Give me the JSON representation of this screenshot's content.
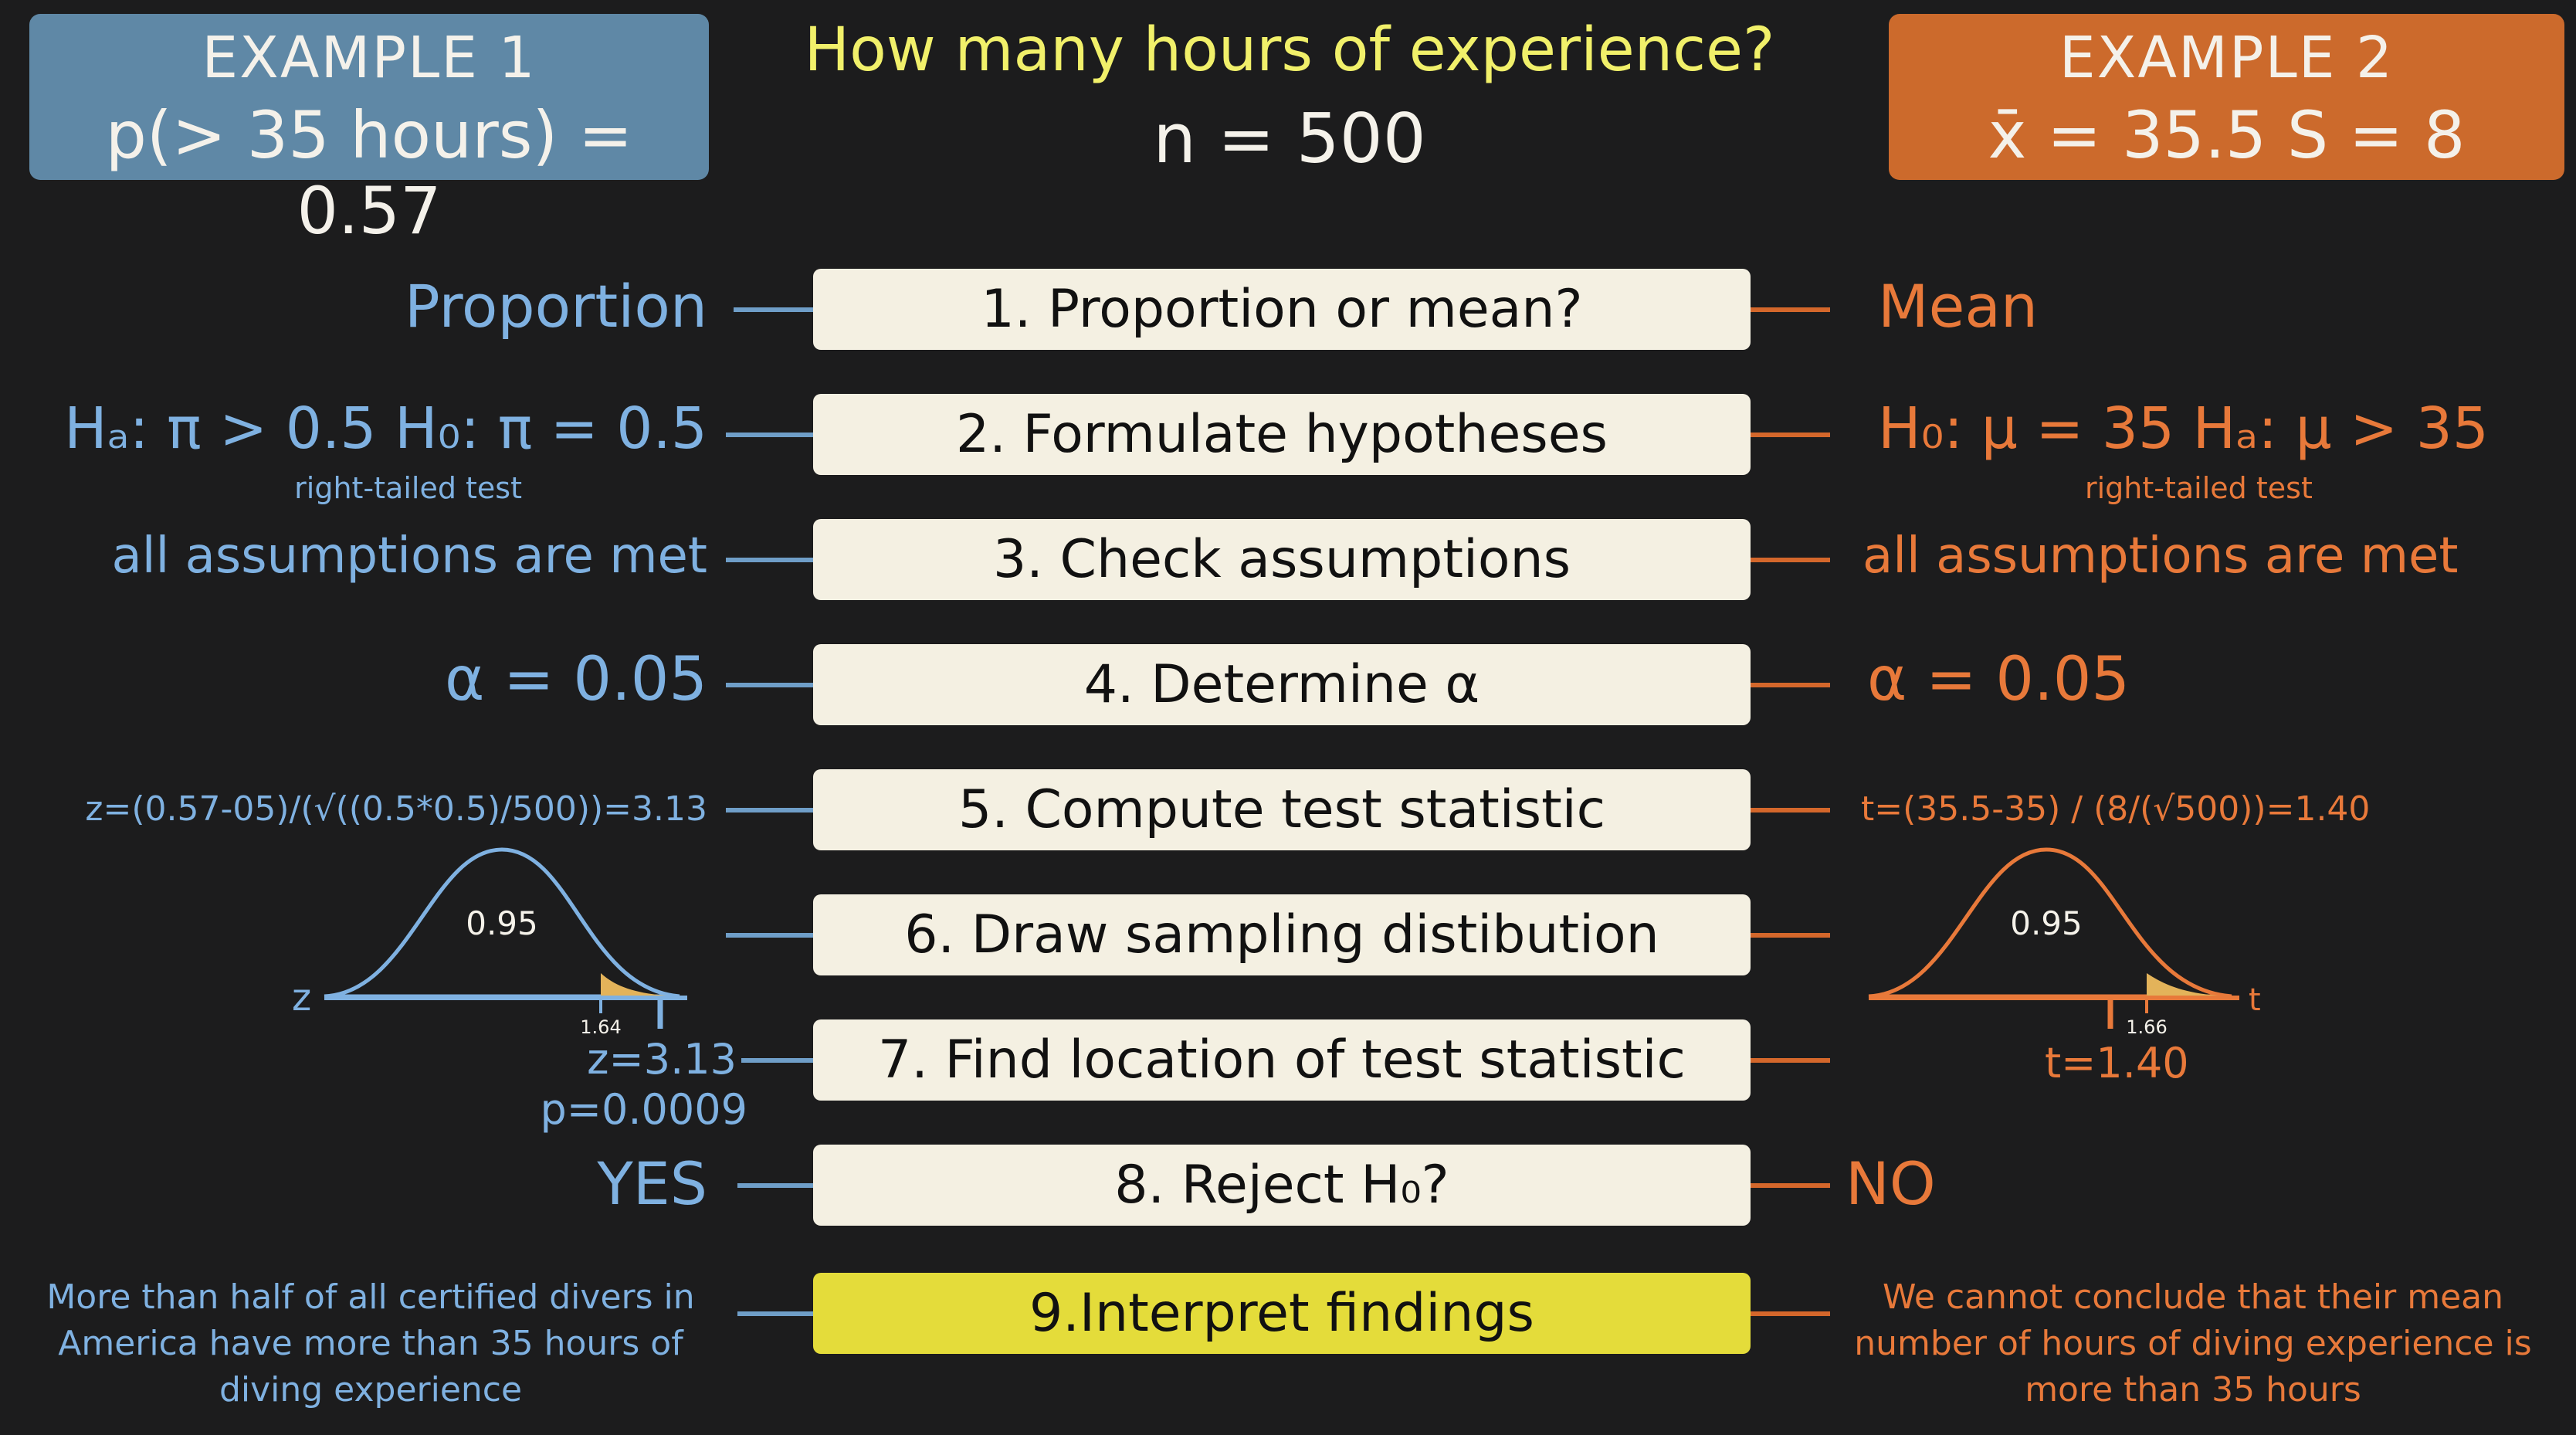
{
  "example1": {
    "title": "EXAMPLE 1",
    "stat": "p(> 35 hours) = 0.57"
  },
  "example2": {
    "title": "EXAMPLE 2",
    "stat": "x̄ = 35.5   S = 8"
  },
  "header": {
    "question": "How many hours of experience?",
    "sample": "n = 500"
  },
  "steps": [
    {
      "label": "1. Proportion or mean?"
    },
    {
      "label": "2. Formulate hypotheses"
    },
    {
      "label": "3. Check assumptions"
    },
    {
      "label": "4. Determine α"
    },
    {
      "label": "5. Compute test statistic"
    },
    {
      "label": "6. Draw sampling distibution"
    },
    {
      "label": "7. Find location of test statistic"
    },
    {
      "label": "8. Reject H₀?"
    },
    {
      "label": "9.Interpret findings"
    }
  ],
  "left": {
    "s1": "Proportion",
    "s2": "Hₐ: π > 0.5   H₀: π = 0.5",
    "s2_note": "right-tailed test",
    "s3": "all assumptions are met",
    "s4": "α = 0.05",
    "s5": "z=(0.57-05)/(√((0.5*0.5)/500))=3.13",
    "curve_label": "0.95",
    "axis_label": "z",
    "crit": "1.64",
    "s7_stat": "z=3.13",
    "s7_p": "p=0.0009",
    "s8": "YES",
    "s9": "More than half of all certified divers in America have more than 35 hours of diving experience"
  },
  "right": {
    "s1": "Mean",
    "s2": "H₀: μ = 35   Hₐ: μ > 35",
    "s2_note": "right-tailed test",
    "s3": "all assumptions are met",
    "s4": "α = 0.05",
    "s5": "t=(35.5-35) / (8/(√500))=1.40",
    "curve_label": "0.95",
    "axis_label": "t",
    "crit": "1.66",
    "s7_stat": "t=1.40",
    "s8": "NO",
    "s9": "We cannot conclude that their mean number of hours of diving experience is more than 35 hours"
  },
  "colors": {
    "background": "#1c1c1d",
    "blue": "#7fb1e1",
    "orange": "#e8793a",
    "yellow": "#e4dc3a",
    "step_box": "#f4f0e2"
  }
}
